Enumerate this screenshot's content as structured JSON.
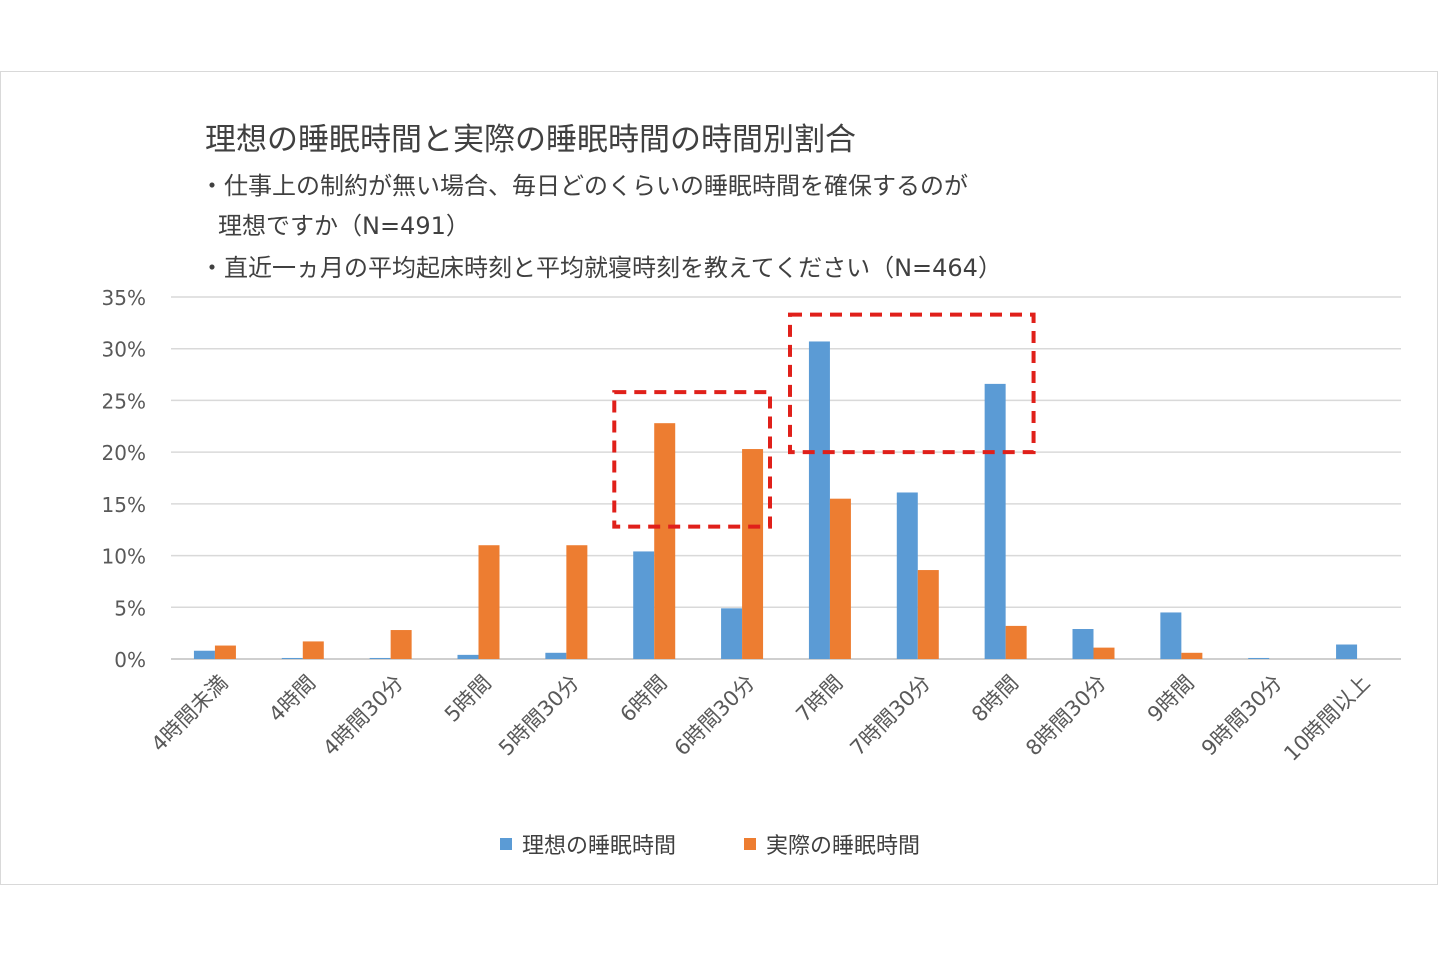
{
  "chart_data": {
    "type": "bar",
    "title": "理想の睡眠時間と実際の睡眠時間の時間別割合",
    "subtitle_lines": [
      "・仕事上の制約が無い場合、毎日どのくらいの睡眠時間を確保するのが",
      "理想ですか（N=491）",
      "・直近一ヵ月の平均起床時刻と平均就寝時刻を教えてください（N=464）"
    ],
    "categories": [
      "4時間未満",
      "4時間",
      "4時間30分",
      "5時間",
      "5時間30分",
      "6時間",
      "6時間30分",
      "7時間",
      "7時間30分",
      "8時間",
      "8時間30分",
      "9時間",
      "9時間30分",
      "10時間以上"
    ],
    "series": [
      {
        "name": "理想の睡眠時間",
        "color": "#5b9bd5",
        "values": [
          0.8,
          0.1,
          0.1,
          0.4,
          0.6,
          10.4,
          4.9,
          30.7,
          16.1,
          26.6,
          2.9,
          4.5,
          0.1,
          1.4
        ]
      },
      {
        "name": "実際の睡眠時間",
        "color": "#ed7d31",
        "values": [
          1.3,
          1.7,
          2.8,
          11.0,
          11.0,
          22.8,
          20.3,
          15.5,
          8.6,
          3.2,
          1.1,
          0.6,
          0.0,
          0.0
        ]
      }
    ],
    "yticks": [
      "0%",
      "5%",
      "10%",
      "15%",
      "20%",
      "25%",
      "30%",
      "35%"
    ],
    "ylim": [
      0,
      35
    ],
    "grid": true,
    "legend": "bottom",
    "highlight_boxes": [
      {
        "from_category": "6時間",
        "to_category": "6時間30分",
        "y_range": [
          12.8,
          25.8
        ]
      },
      {
        "from_category": "7時間",
        "to_category": "8時間",
        "y_range": [
          20.0,
          33.3
        ]
      }
    ],
    "highlight_color": "#e0201a"
  }
}
